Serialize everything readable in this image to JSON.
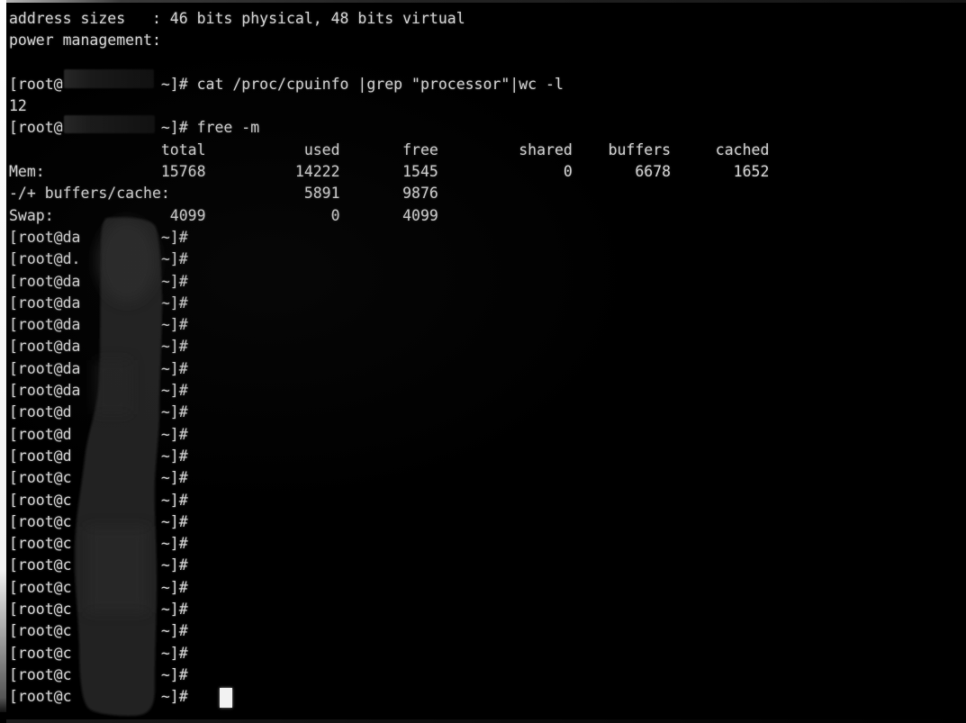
{
  "screen": {
    "background_color": "#000000",
    "text_color": "#d4d4d4",
    "lines": [
      "address sizes   : 46 bits physical, 48 bits virtual",
      "power management:",
      "",
      "[root@           ~]# cat /proc/cpuinfo |grep \"processor\"|wc -l",
      "12",
      "[root@           ~]# free -m",
      "                 total           used       free         shared    buffers     cached",
      "Mem:             15768          14222       1545              0       6678       1652",
      "-/+ buffers/cache:               5891       9876",
      "Swap:             4099              0       4099",
      "[root@da         ~]# ",
      "[root@d.         ~]# ",
      "[root@da         ~]# ",
      "[root@da         ~]# ",
      "[root@da         ~]# ",
      "[root@da         ~]# ",
      "[root@da         ~]# ",
      "[root@da         ~]# ",
      "[root@d          ~]# ",
      "[root@d          ~]# ",
      "[root@d          ~]# ",
      "[root@c          ~]# ",
      "[root@c          ~]# ",
      "[root@c          ~]# ",
      "[root@c          ~]# ",
      "[root@c          ~]# ",
      "[root@c          ~]# ",
      "[root@c          ~]# ",
      "[root@c          ~]# ",
      "[root@c          ~]# ",
      "[root@c          ~]# ",
      "[root@c  `  ,    ~]#"
    ],
    "free_table": {
      "command": "free -m",
      "columns": [
        "total",
        "used",
        "free",
        "shared",
        "buffers",
        "cached"
      ],
      "rows": [
        {
          "label": "Mem:",
          "values": [
            "15768",
            "14222",
            "1545",
            "0",
            "6678",
            "1652"
          ]
        },
        {
          "label": "-/+ buffers/cache:",
          "values": [
            "5891",
            "9876"
          ]
        },
        {
          "label": "Swap:",
          "values": [
            "4099",
            "0",
            "4099"
          ]
        }
      ]
    },
    "processor_count_command": "cat /proc/cpuinfo |grep \"processor\"|wc -l",
    "processor_count_result": "12",
    "cpuinfo_tail": {
      "address_sizes": "46 bits physical, 48 bits virtual",
      "power_management": ""
    },
    "prompt_prefix": "[root@",
    "prompt_suffix": "~]#",
    "cursor": {
      "style": "block",
      "color": "#f2f2f2",
      "visible": true
    }
  },
  "redactions": {
    "hostname_box_color": "#1a1a1a",
    "scribble_color": "#202020",
    "count_boxes": 2,
    "scribble_present": true
  }
}
